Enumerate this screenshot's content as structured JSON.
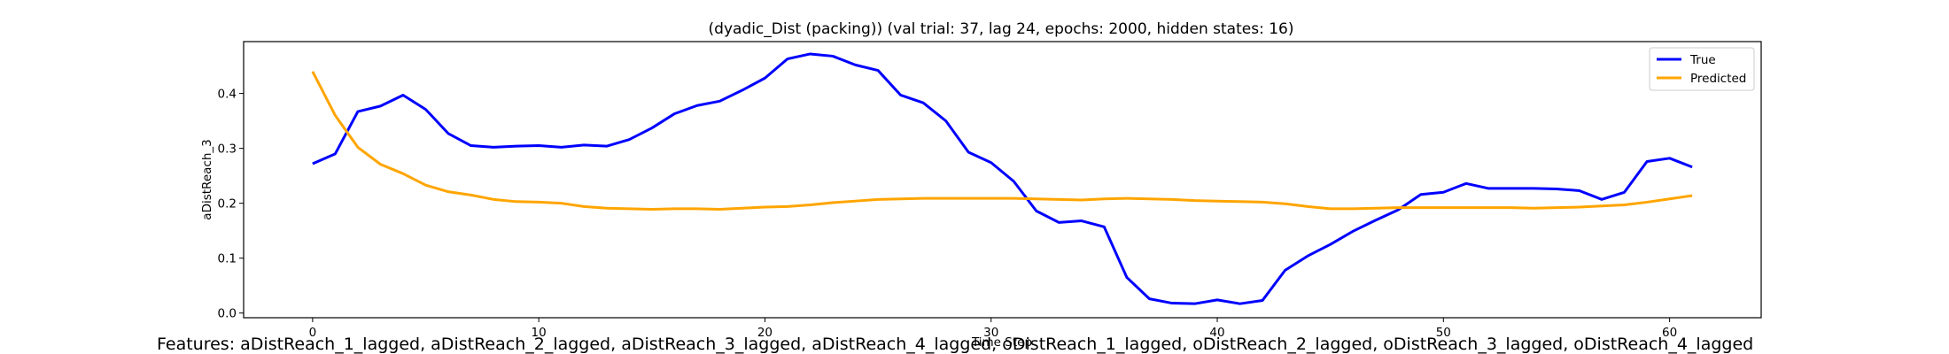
{
  "chart_data": {
    "type": "line",
    "title": "(dyadic_Dist (packing)) (val trial: 37, lag 24, epochs: 2000, hidden states: 16)",
    "xlabel": "Time Step",
    "ylabel": "aDistReach_3",
    "xlim": [
      -3.05,
      64.05
    ],
    "ylim": [
      -0.0085,
      0.4945
    ],
    "xticks": [
      0,
      10,
      20,
      30,
      40,
      50,
      60
    ],
    "yticks": [
      0.0,
      0.1,
      0.2,
      0.3,
      0.4
    ],
    "ytick_labels": [
      "0.0",
      "0.1",
      "0.2",
      "0.3",
      "0.4"
    ],
    "grid": false,
    "legend_position": "top-right",
    "series": [
      {
        "name": "True",
        "color": "#0000ff",
        "values": [
          0.272,
          0.29,
          0.367,
          0.377,
          0.397,
          0.371,
          0.327,
          0.305,
          0.302,
          0.304,
          0.305,
          0.302,
          0.306,
          0.304,
          0.316,
          0.337,
          0.363,
          0.378,
          0.386,
          0.406,
          0.428,
          0.463,
          0.472,
          0.468,
          0.452,
          0.442,
          0.397,
          0.383,
          0.35,
          0.293,
          0.274,
          0.24,
          0.186,
          0.165,
          0.168,
          0.157,
          0.065,
          0.026,
          0.018,
          0.017,
          0.024,
          0.017,
          0.023,
          0.078,
          0.104,
          0.125,
          0.149,
          0.169,
          0.188,
          0.216,
          0.22,
          0.236,
          0.227,
          0.227,
          0.227,
          0.226,
          0.223,
          0.207,
          0.22,
          0.276,
          0.282,
          0.266
        ]
      },
      {
        "name": "Predicted",
        "color": "#ffa500",
        "values": [
          0.44,
          0.36,
          0.302,
          0.271,
          0.254,
          0.233,
          0.221,
          0.215,
          0.207,
          0.203,
          0.202,
          0.2,
          0.194,
          0.191,
          0.19,
          0.189,
          0.19,
          0.19,
          0.189,
          0.191,
          0.193,
          0.194,
          0.197,
          0.201,
          0.204,
          0.207,
          0.208,
          0.209,
          0.209,
          0.209,
          0.209,
          0.209,
          0.208,
          0.207,
          0.206,
          0.208,
          0.209,
          0.208,
          0.207,
          0.205,
          0.204,
          0.203,
          0.202,
          0.199,
          0.194,
          0.19,
          0.19,
          0.191,
          0.192,
          0.192,
          0.192,
          0.192,
          0.192,
          0.192,
          0.191,
          0.192,
          0.193,
          0.195,
          0.197,
          0.202,
          0.208,
          0.214
        ]
      }
    ]
  },
  "footer": {
    "features_text": "Features: aDistReach_1_lagged, aDistReach_2_lagged, aDistReach_3_lagged, aDistReach_4_lagged, oDistReach_1_lagged, oDistReach_2_lagged, oDistReach_3_lagged, oDistReach_4_lagged"
  }
}
